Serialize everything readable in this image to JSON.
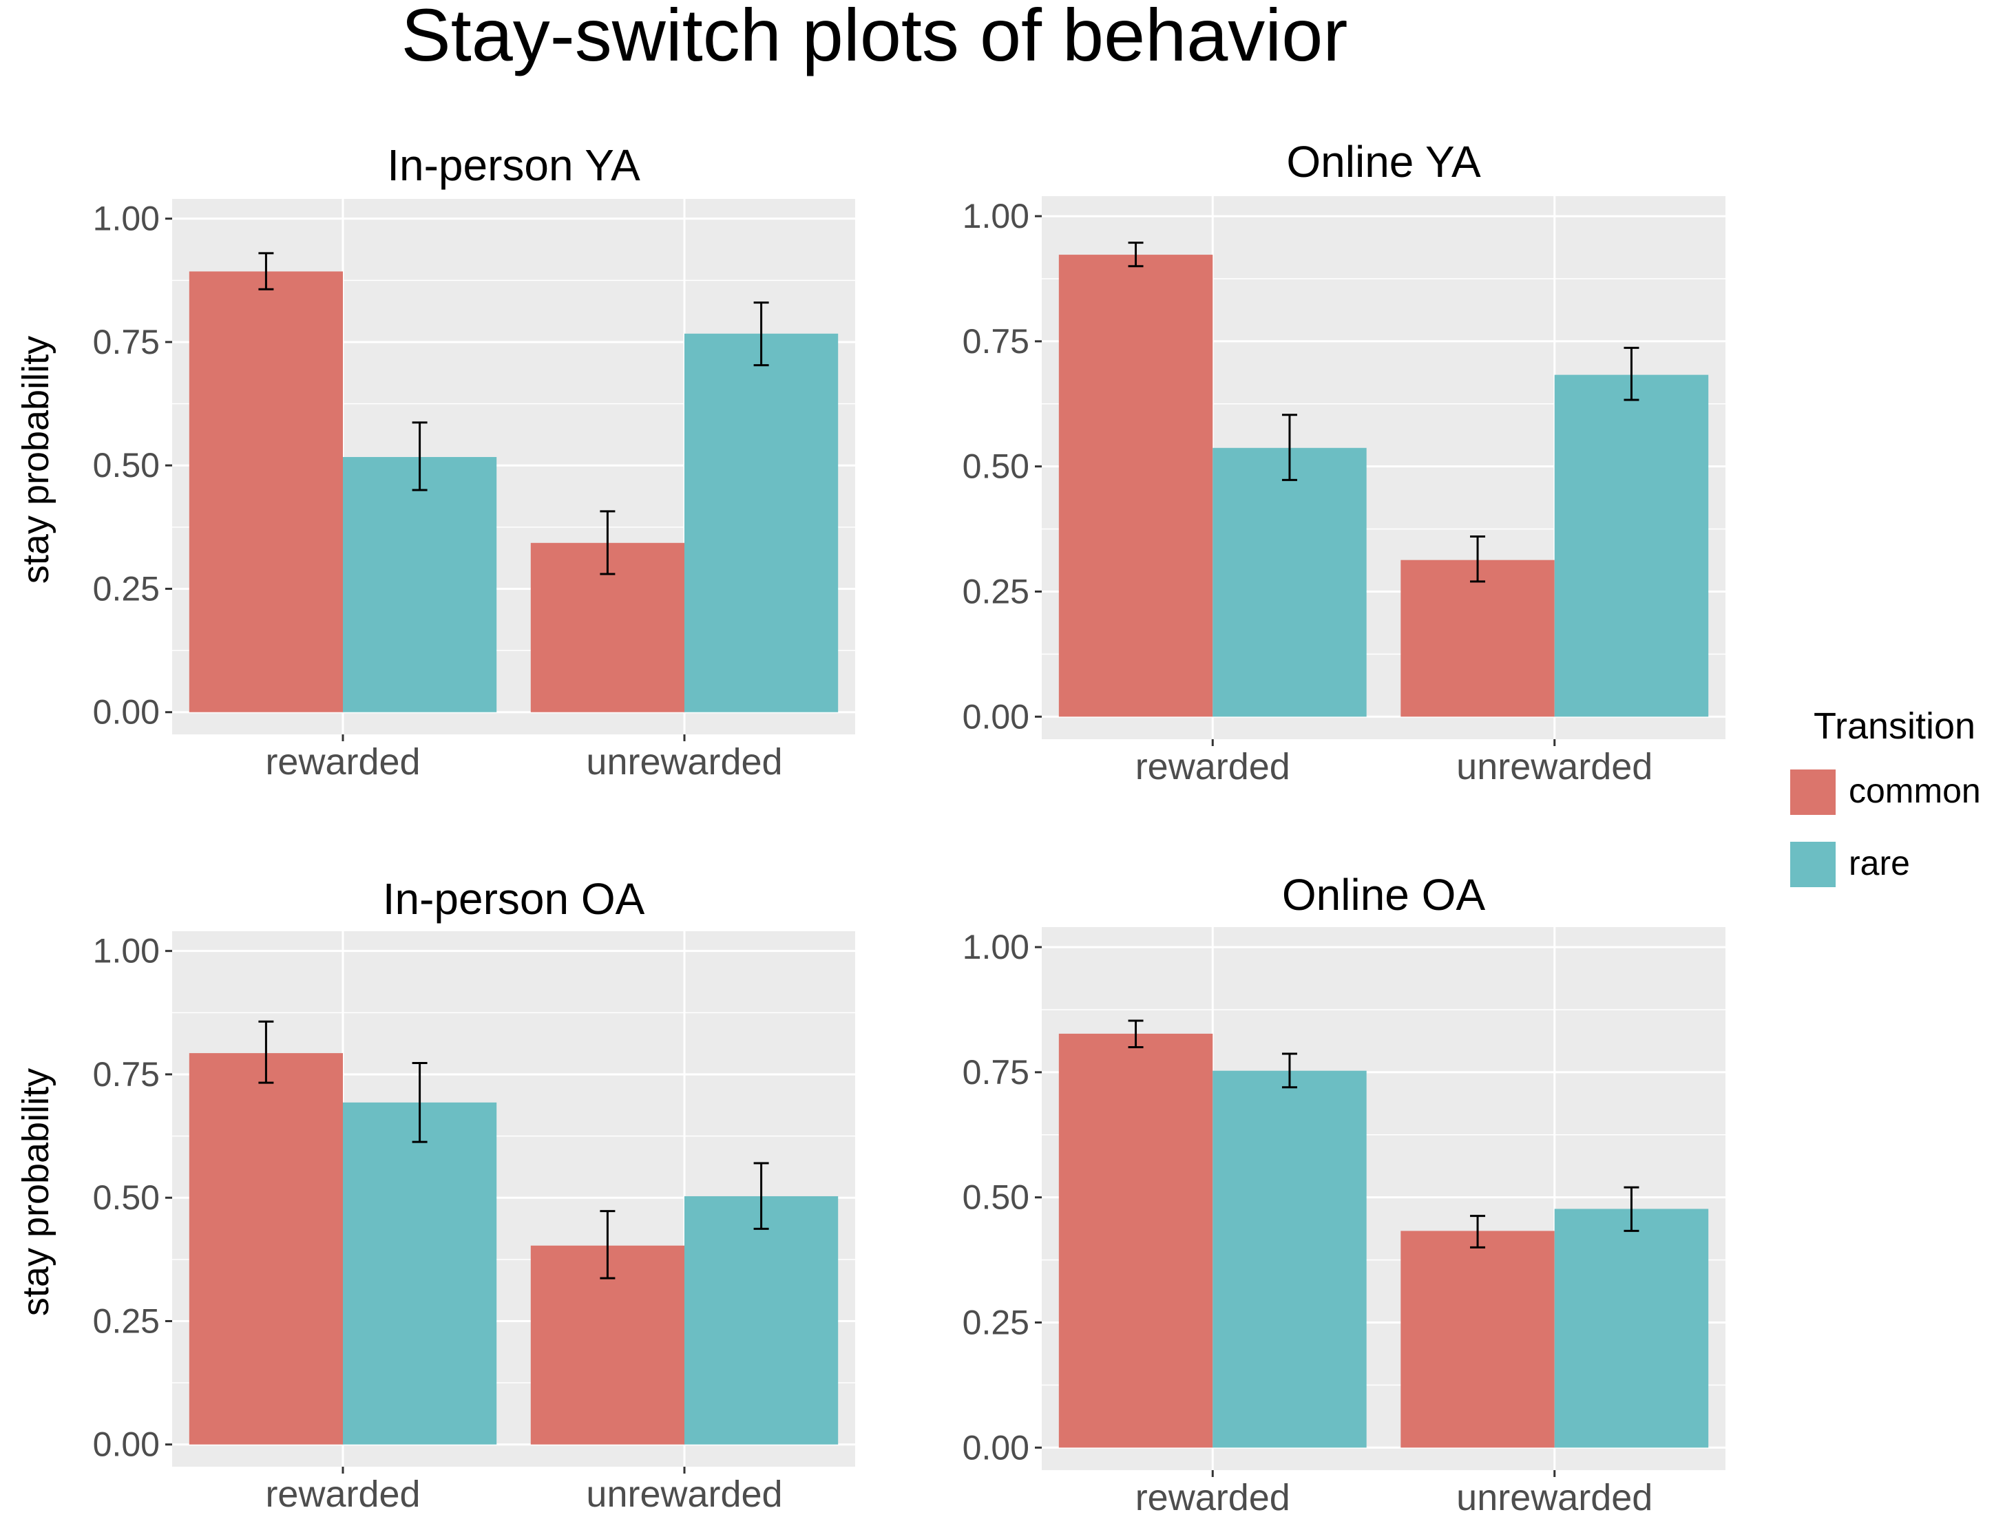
{
  "figure_title": "Stay-switch plots of behavior",
  "legend": {
    "title": "Transition",
    "items": [
      {
        "label": "common",
        "color": "#DB756C"
      },
      {
        "label": "rare",
        "color": "#6CBEC3"
      }
    ]
  },
  "chart_data": [
    {
      "type": "bar",
      "title": "In-person YA",
      "ylabel": "stay probability",
      "xlabel": "",
      "ylim": [
        -0.045,
        1.04
      ],
      "yticks": [
        "0.00",
        "0.25",
        "0.50",
        "0.75",
        "1.00"
      ],
      "categories": [
        "rewarded",
        "unrewarded"
      ],
      "series": [
        {
          "name": "common",
          "values": [
            0.893,
            0.343
          ],
          "err_low": [
            0.857,
            0.28
          ],
          "err_high": [
            0.93,
            0.407
          ]
        },
        {
          "name": "rare",
          "values": [
            0.517,
            0.767
          ],
          "err_low": [
            0.45,
            0.703
          ],
          "err_high": [
            0.587,
            0.83
          ]
        }
      ]
    },
    {
      "type": "bar",
      "title": "Online YA",
      "ylabel": "",
      "xlabel": "",
      "ylim": [
        -0.045,
        1.04
      ],
      "yticks": [
        "0.00",
        "0.25",
        "0.50",
        "0.75",
        "1.00"
      ],
      "categories": [
        "rewarded",
        "unrewarded"
      ],
      "series": [
        {
          "name": "common",
          "values": [
            0.923,
            0.313
          ],
          "err_low": [
            0.9,
            0.27
          ],
          "err_high": [
            0.947,
            0.36
          ]
        },
        {
          "name": "rare",
          "values": [
            0.537,
            0.683
          ],
          "err_low": [
            0.473,
            0.633
          ],
          "err_high": [
            0.603,
            0.737
          ]
        }
      ]
    },
    {
      "type": "bar",
      "title": "In-person OA",
      "ylabel": "stay probability",
      "xlabel": "",
      "ylim": [
        -0.045,
        1.04
      ],
      "yticks": [
        "0.00",
        "0.25",
        "0.50",
        "0.75",
        "1.00"
      ],
      "categories": [
        "rewarded",
        "unrewarded"
      ],
      "series": [
        {
          "name": "common",
          "values": [
            0.793,
            0.403
          ],
          "err_low": [
            0.733,
            0.337
          ],
          "err_high": [
            0.857,
            0.473
          ]
        },
        {
          "name": "rare",
          "values": [
            0.693,
            0.503
          ],
          "err_low": [
            0.613,
            0.437
          ],
          "err_high": [
            0.773,
            0.57
          ]
        }
      ]
    },
    {
      "type": "bar",
      "title": "Online OA",
      "ylabel": "",
      "xlabel": "",
      "ylim": [
        -0.045,
        1.04
      ],
      "yticks": [
        "0.00",
        "0.25",
        "0.50",
        "0.75",
        "1.00"
      ],
      "categories": [
        "rewarded",
        "unrewarded"
      ],
      "series": [
        {
          "name": "common",
          "values": [
            0.827,
            0.433
          ],
          "err_low": [
            0.8,
            0.4
          ],
          "err_high": [
            0.853,
            0.463
          ]
        },
        {
          "name": "rare",
          "values": [
            0.753,
            0.477
          ],
          "err_low": [
            0.72,
            0.433
          ],
          "err_high": [
            0.787,
            0.52
          ]
        }
      ]
    }
  ]
}
